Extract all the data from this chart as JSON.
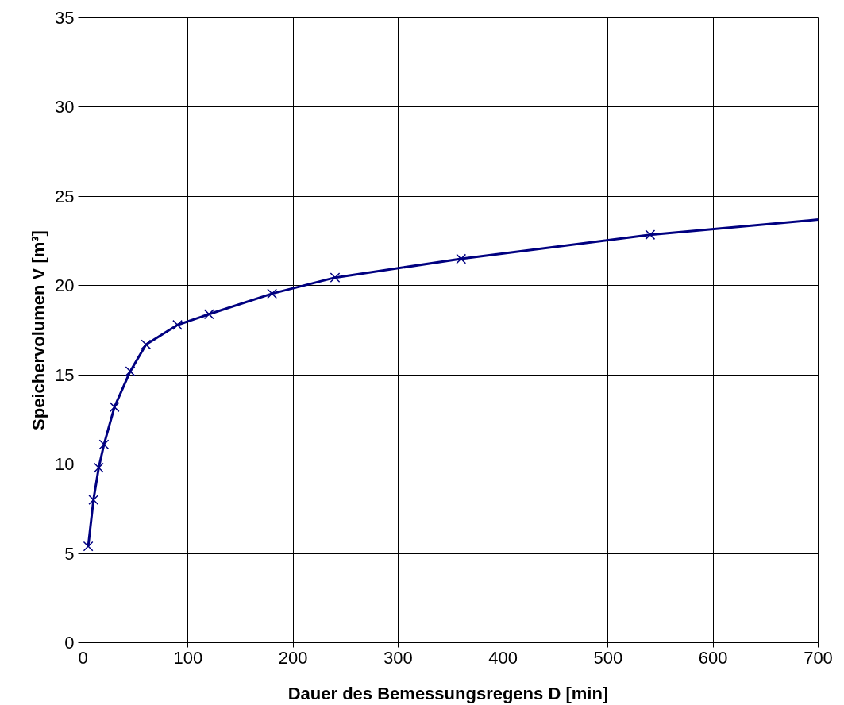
{
  "chart_data": {
    "type": "line",
    "xlabel": "Dauer des Bemessungsregens  D [min]",
    "ylabel": "Speichervolumen V [m³]",
    "xlim": [
      0,
      700
    ],
    "xticks": [
      0,
      100,
      200,
      300,
      400,
      500,
      600,
      700
    ],
    "ylim": [
      0,
      35
    ],
    "yticks": [
      0,
      5,
      10,
      15,
      20,
      25,
      30,
      35
    ],
    "grid": true,
    "series": [
      {
        "color": "#000080",
        "marker": "none",
        "line_style": "solid",
        "x": [
          5,
          10,
          15,
          20,
          30,
          45,
          60,
          90,
          120,
          180,
          240,
          360,
          540,
          700
        ],
        "values": [
          5.4,
          8,
          9.8,
          11.1,
          13.2,
          15.2,
          16.7,
          17.8,
          18.4,
          19.55,
          20.45,
          21.5,
          22.85,
          23.7
        ]
      },
      {
        "type": "scatter",
        "color": "#000080",
        "marker": "cross",
        "x": [
          5,
          10,
          15,
          20,
          30,
          45,
          60,
          90,
          120,
          180,
          240,
          360,
          540
        ],
        "values": [
          5.4,
          8,
          9.8,
          11.1,
          13.2,
          15.2,
          16.7,
          17.8,
          18.4,
          19.55,
          20.45,
          21.5,
          22.85
        ]
      }
    ]
  }
}
